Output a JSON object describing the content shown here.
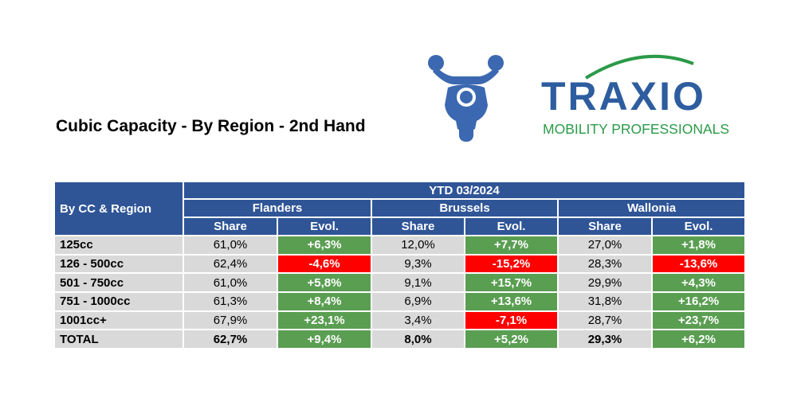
{
  "title": "Cubic Capacity - By Region - 2nd Hand",
  "logo": {
    "name": "TRAXIO",
    "tagline": "MOBILITY PROFESSIONALS"
  },
  "table": {
    "corner": "By CC & Region",
    "period": "YTD 03/2024",
    "regions": [
      "Flanders",
      "Brussels",
      "Wallonia"
    ],
    "columns": [
      "Share",
      "Evol."
    ],
    "rows": [
      {
        "label": "125cc",
        "cells": [
          "61,0%",
          "+6,3%",
          "12,0%",
          "+7,7%",
          "27,0%",
          "+1,8%"
        ]
      },
      {
        "label": "126 - 500cc",
        "cells": [
          "62,4%",
          "-4,6%",
          "9,3%",
          "-15,2%",
          "28,3%",
          "-13,6%"
        ]
      },
      {
        "label": "501 - 750cc",
        "cells": [
          "61,0%",
          "+5,8%",
          "9,1%",
          "+15,7%",
          "29,9%",
          "+4,3%"
        ]
      },
      {
        "label": "751 - 1000cc",
        "cells": [
          "61,3%",
          "+8,4%",
          "6,9%",
          "+13,6%",
          "31,8%",
          "+16,2%"
        ]
      },
      {
        "label": "1001cc+",
        "cells": [
          "67,9%",
          "+23,1%",
          "3,4%",
          "-7,1%",
          "28,7%",
          "+23,7%"
        ]
      },
      {
        "label": "TOTAL",
        "cells": [
          "62,7%",
          "+9,4%",
          "8,0%",
          "+5,2%",
          "29,3%",
          "+6,2%"
        ]
      }
    ]
  }
}
